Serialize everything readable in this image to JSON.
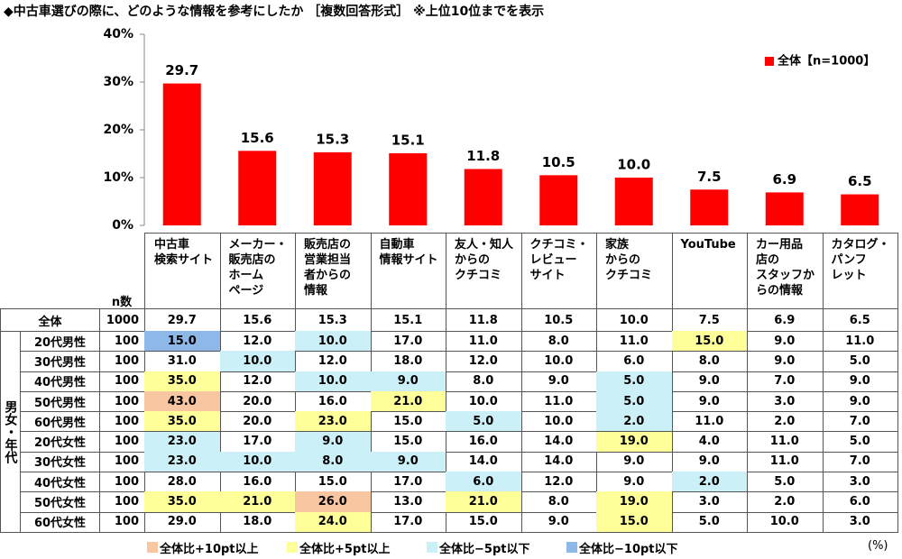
{
  "title": "◆中古車選びの際に、どのような情報を参考にしたか ［複数回答形式］ ※上位10位までを表示",
  "chart_data": {
    "type": "bar",
    "categories": [
      "中古車\n検索サイト",
      "メーカー・\n販売店の\nホーム\nページ",
      "販売店の\n営業担当\n者からの\n情報",
      "自動車\n情報サイト",
      "友人・知人\nからの\nクチコミ",
      "クチコミ・\nレビュー\nサイト",
      "家族\nからの\nクチコミ",
      "YouTube",
      "カー用品\n店の\nスタッフか\nらの情報",
      "カタログ・\nパンフ\nレット"
    ],
    "series": [
      {
        "name": "全体【n=1000】",
        "color": "#ff0000",
        "values": [
          29.7,
          15.6,
          15.3,
          15.1,
          11.8,
          10.5,
          10.0,
          7.5,
          6.9,
          6.5
        ],
        "value_labels": [
          "29.7",
          "15.6",
          "15.3",
          "15.1",
          "11.8",
          "10.5",
          "10.0",
          "7.5",
          "6.9",
          "6.5"
        ]
      }
    ],
    "ylim": [
      0,
      40
    ],
    "yticks": [
      {
        "value": 0,
        "label": "0%"
      },
      {
        "value": 10,
        "label": "10%"
      },
      {
        "value": 20,
        "label": "20%"
      },
      {
        "value": 30,
        "label": "30%"
      },
      {
        "value": 40,
        "label": "40%"
      }
    ],
    "legend_position": "top-right"
  },
  "table": {
    "n_header": "n数",
    "group_label": "男女・年代",
    "total": {
      "label": "全体",
      "n": "1000",
      "cells": [
        "29.7",
        "15.6",
        "15.3",
        "15.1",
        "11.8",
        "10.5",
        "10.0",
        "7.5",
        "6.9",
        "6.5"
      ]
    },
    "rows": [
      {
        "label": "20代男性",
        "n": "100",
        "cells": [
          "15.0",
          "12.0",
          "10.0",
          "17.0",
          "11.0",
          "8.0",
          "11.0",
          "15.0",
          "9.0",
          "11.0"
        ],
        "highlight": [
          3,
          null,
          2,
          null,
          null,
          null,
          null,
          1,
          null,
          null
        ]
      },
      {
        "label": "30代男性",
        "n": "100",
        "cells": [
          "31.0",
          "10.0",
          "12.0",
          "18.0",
          "12.0",
          "10.0",
          "6.0",
          "8.0",
          "9.0",
          "5.0"
        ],
        "highlight": [
          null,
          2,
          null,
          null,
          null,
          null,
          null,
          null,
          null,
          null
        ]
      },
      {
        "label": "40代男性",
        "n": "100",
        "cells": [
          "35.0",
          "12.0",
          "10.0",
          "9.0",
          "8.0",
          "9.0",
          "5.0",
          "9.0",
          "7.0",
          "9.0"
        ],
        "highlight": [
          1,
          null,
          2,
          2,
          null,
          null,
          2,
          null,
          null,
          null
        ]
      },
      {
        "label": "50代男性",
        "n": "100",
        "cells": [
          "43.0",
          "20.0",
          "16.0",
          "21.0",
          "10.0",
          "11.0",
          "5.0",
          "9.0",
          "3.0",
          "9.0"
        ],
        "highlight": [
          0,
          null,
          null,
          1,
          null,
          null,
          2,
          null,
          null,
          null
        ]
      },
      {
        "label": "60代男性",
        "n": "100",
        "cells": [
          "35.0",
          "20.0",
          "23.0",
          "15.0",
          "5.0",
          "10.0",
          "2.0",
          "11.0",
          "2.0",
          "7.0"
        ],
        "highlight": [
          1,
          null,
          1,
          null,
          2,
          null,
          2,
          null,
          null,
          null
        ]
      },
      {
        "label": "20代女性",
        "n": "100",
        "cells": [
          "23.0",
          "17.0",
          "9.0",
          "15.0",
          "16.0",
          "14.0",
          "19.0",
          "4.0",
          "11.0",
          "5.0"
        ],
        "highlight": [
          2,
          null,
          2,
          null,
          null,
          null,
          1,
          null,
          null,
          null
        ]
      },
      {
        "label": "30代女性",
        "n": "100",
        "cells": [
          "23.0",
          "10.0",
          "8.0",
          "9.0",
          "14.0",
          "14.0",
          "9.0",
          "9.0",
          "11.0",
          "7.0"
        ],
        "highlight": [
          2,
          2,
          2,
          2,
          null,
          null,
          null,
          null,
          null,
          null
        ]
      },
      {
        "label": "40代女性",
        "n": "100",
        "cells": [
          "28.0",
          "16.0",
          "15.0",
          "17.0",
          "6.0",
          "12.0",
          "9.0",
          "2.0",
          "5.0",
          "3.0"
        ],
        "highlight": [
          null,
          null,
          null,
          null,
          2,
          null,
          null,
          2,
          null,
          null
        ]
      },
      {
        "label": "50代女性",
        "n": "100",
        "cells": [
          "35.0",
          "21.0",
          "26.0",
          "13.0",
          "21.0",
          "8.0",
          "19.0",
          "3.0",
          "2.0",
          "6.0"
        ],
        "highlight": [
          1,
          1,
          0,
          null,
          1,
          null,
          1,
          null,
          null,
          null
        ]
      },
      {
        "label": "60代女性",
        "n": "100",
        "cells": [
          "29.0",
          "18.0",
          "24.0",
          "17.0",
          "15.0",
          "9.0",
          "15.0",
          "5.0",
          "10.0",
          "3.0"
        ],
        "highlight": [
          null,
          null,
          1,
          null,
          null,
          null,
          1,
          null,
          null,
          null
        ]
      }
    ]
  },
  "legend": [
    {
      "label": "全体比+10pt以上",
      "color": "#f8c6a0"
    },
    {
      "label": "全体比+5pt以上",
      "color": "#ffff99"
    },
    {
      "label": "全体比−5pt以下",
      "color": "#ccf0f7"
    },
    {
      "label": "全体比−10pt以下",
      "color": "#8db8e8"
    }
  ],
  "unit": "(%)"
}
